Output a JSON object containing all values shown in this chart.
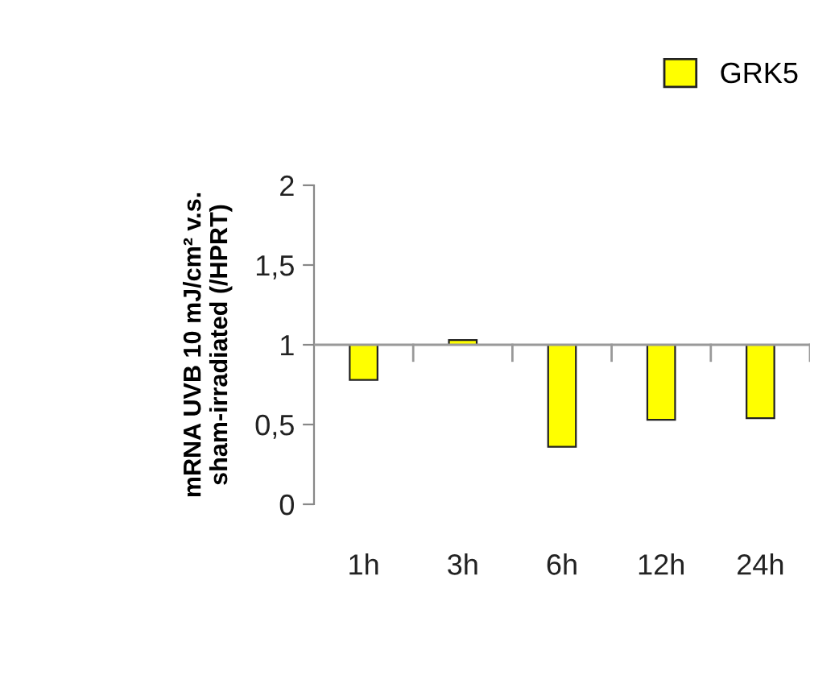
{
  "chart_data": {
    "type": "bar",
    "ylabel": "mRNA UVB 10 mJ/cm² v.s.\nsham-irradiated (/HPRT)",
    "categories": [
      "1h",
      "3h",
      "6h",
      "12h",
      "24h"
    ],
    "series": [
      {
        "name": "GRK5",
        "color": "#ffff00",
        "base": [
          1,
          1,
          1,
          1,
          1
        ],
        "values": [
          -0.22,
          0.03,
          -0.64,
          -0.47,
          -0.46
        ]
      }
    ],
    "ref_lines": [
      {
        "axis": "y",
        "value": 1,
        "color": "#999999"
      }
    ],
    "ylim": [
      0,
      2
    ],
    "yticks": [
      {
        "value": 0,
        "label": "0"
      },
      {
        "value": 0.5,
        "label": "0,5"
      },
      {
        "value": 1,
        "label": "1"
      },
      {
        "value": 1.5,
        "label": "1,5"
      },
      {
        "value": 2,
        "label": "2"
      }
    ],
    "grid": false,
    "legend": "top right"
  }
}
